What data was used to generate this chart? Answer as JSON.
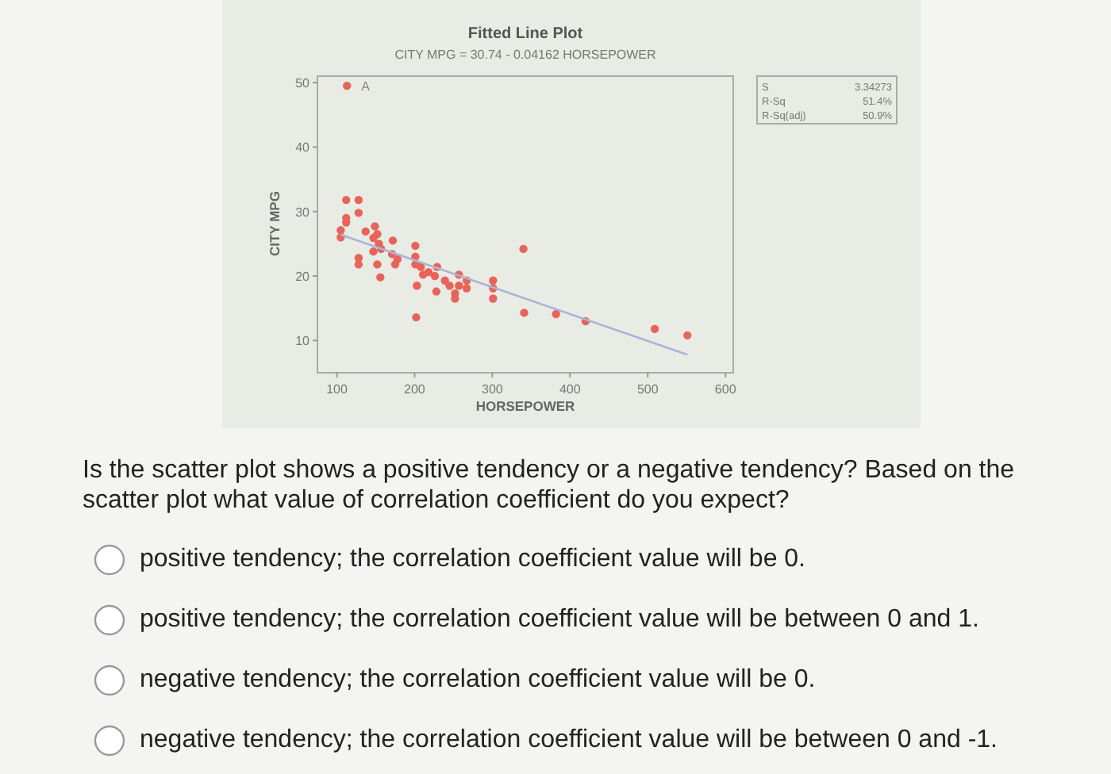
{
  "chart_data": {
    "type": "scatter",
    "title": "Fitted Line Plot",
    "subtitle": "CITY MPG = 30.74 - 0.04162 HORSEPOWER",
    "xlabel": "HORSEPOWER",
    "ylabel": "CITY MPG",
    "xlim": [
      75,
      610
    ],
    "ylim": [
      5,
      51
    ],
    "xticks": [
      100,
      200,
      300,
      400,
      500,
      600
    ],
    "yticks": [
      10,
      20,
      30,
      40,
      50
    ],
    "series": [
      {
        "marker": "circle",
        "color": "#e8645a",
        "x": [
          113,
          105,
          105,
          112,
          112,
          112,
          128,
          128,
          128,
          128,
          137,
          149,
          147,
          147,
          152,
          154,
          157,
          152,
          156,
          172,
          171,
          178,
          175,
          201,
          201,
          201,
          203,
          202,
          208,
          211,
          218,
          226,
          229,
          228,
          239,
          245,
          252,
          252,
          257,
          257,
          267,
          267,
          301,
          301,
          301,
          340,
          341,
          382,
          420,
          509,
          551
        ],
        "values": [
          49.5,
          27.1,
          26,
          28.3,
          29,
          31.8,
          31.8,
          29.8,
          22.8,
          21.8,
          26.9,
          27.7,
          25.9,
          23.8,
          26.5,
          25,
          24.2,
          21.8,
          19.8,
          25.5,
          23.4,
          22.6,
          21.8,
          24.7,
          23,
          21.8,
          18.5,
          13.6,
          21.4,
          20.2,
          20.6,
          20,
          21.4,
          17.6,
          19.3,
          18.5,
          17.3,
          16.5,
          20.2,
          18.5,
          19.3,
          18.1,
          19.3,
          18.1,
          16.5,
          24.2,
          14.3,
          14.1,
          13,
          11.8,
          10.8
        ]
      },
      {
        "type": "line",
        "color": "#aab4d8",
        "x": [
          105,
          551
        ],
        "values": [
          26.4,
          7.8
        ]
      }
    ],
    "annotations": [
      {
        "text": "A",
        "x": 113,
        "y": 49.5
      },
      "S",
      "3.34273",
      "R-Sq",
      "51.4%",
      "R-Sq(adj)",
      "50.9%",
      "Is the scatter plot shows a positive tendency or a negative tendency? Based on the scatter plot what value of correlation coefficient do you expect?",
      "positive tendency;  the correlation coefficient value will be 0.",
      "positive tendency; the correlation coefficient value will be between 0 and 1.",
      "negative tendency;  the correlation coefficient value will be 0.",
      "negative tendency; the correlation coefficient value will be between 0 and -1."
    ]
  }
}
